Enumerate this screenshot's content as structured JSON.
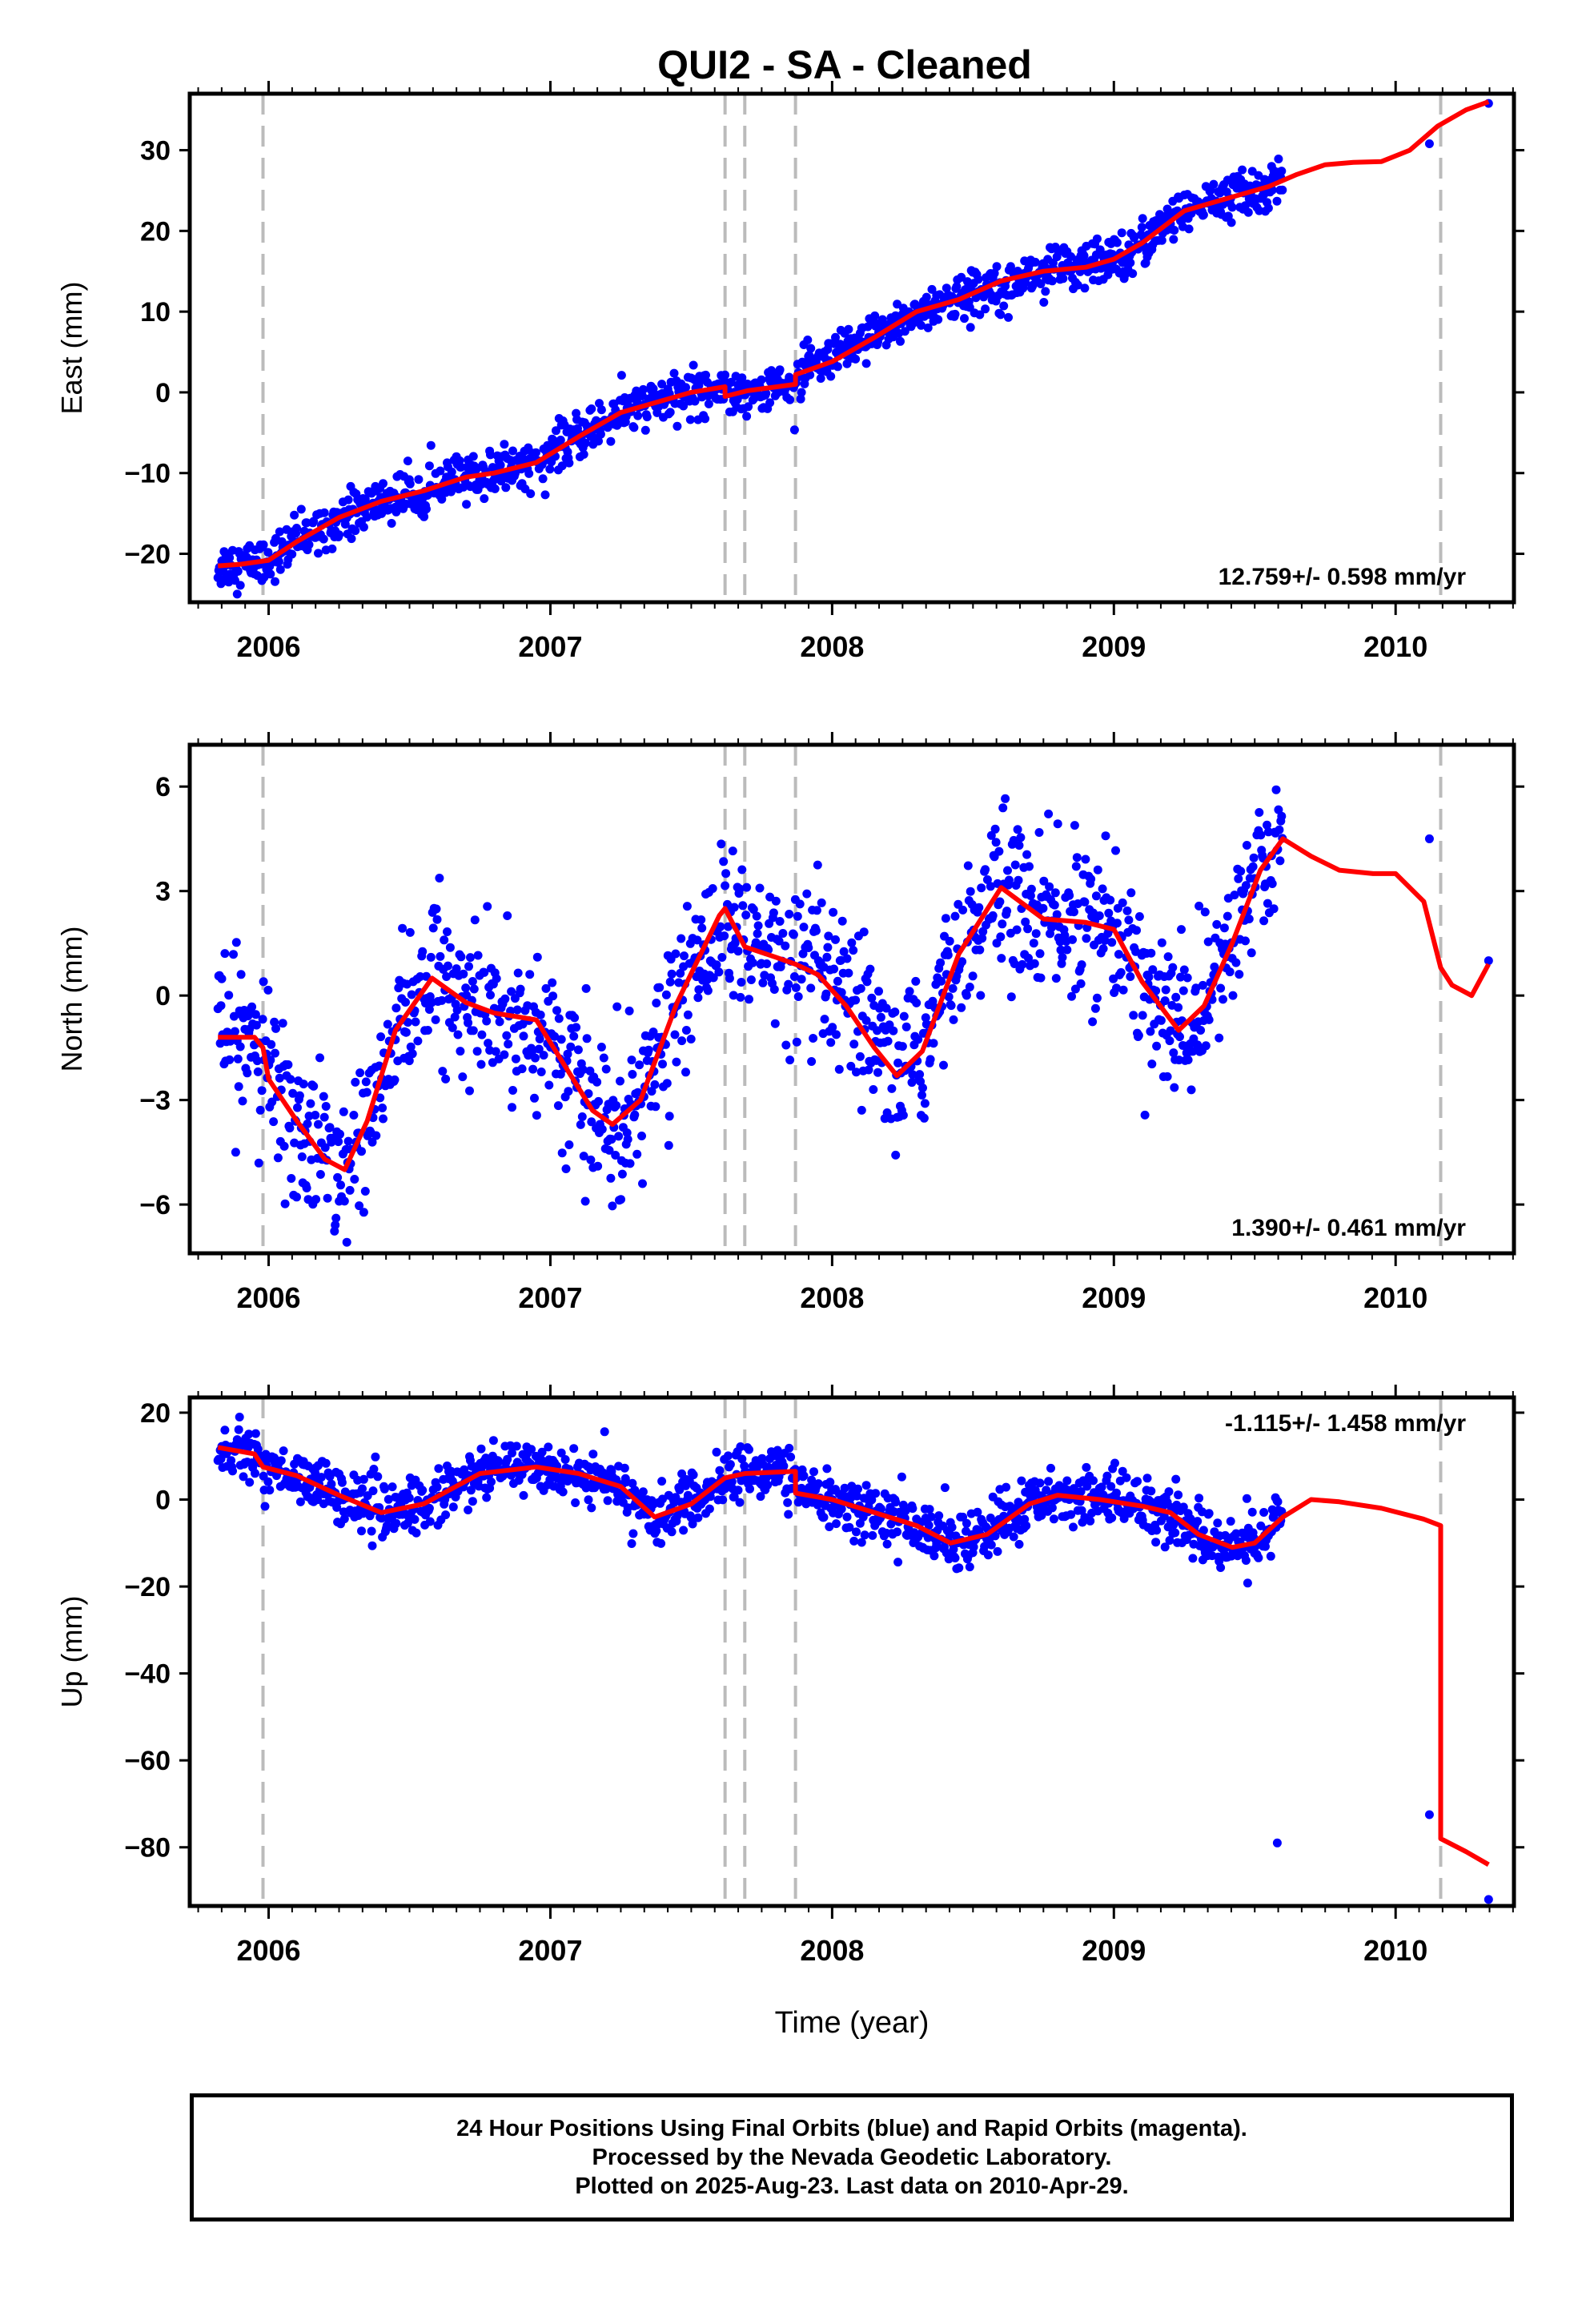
{
  "title": "QUI2  - SA - Cleaned",
  "footer": {
    "line1": "24 Hour Positions Using Final Orbits (blue) and Rapid Orbits (magenta).",
    "line2": "Processed by the Nevada Geodetic Laboratory.",
    "line3": "Plotted on 2025-Aug-23. Last data on 2010-Apr-29."
  },
  "colors": {
    "data": "#0000ff",
    "model": "#ff0000",
    "event_line": "#bbbbbb",
    "axis": "#000000"
  },
  "chart_data": [
    {
      "type": "scatter",
      "ylabel": "East (mm)",
      "xlabel": "",
      "rate": "12.759+/- 0.598 mm/yr",
      "xlim": [
        2005.72,
        2010.42
      ],
      "ylim": [
        -26,
        37
      ],
      "yticks": [
        -20,
        -10,
        0,
        10,
        20,
        30
      ],
      "xticks": [
        2006,
        2007,
        2008,
        2009,
        2010
      ],
      "event_lines": [
        2005.98,
        2007.62,
        2007.69,
        2007.87,
        2010.16
      ],
      "model": {
        "name": "model",
        "x": [
          2005.82,
          2005.9,
          2006.0,
          2006.1,
          2006.25,
          2006.4,
          2006.55,
          2006.7,
          2006.8,
          2006.95,
          2007.1,
          2007.25,
          2007.4,
          2007.5,
          2007.62,
          2007.62,
          2007.7,
          2007.87,
          2007.87,
          2008.0,
          2008.15,
          2008.3,
          2008.45,
          2008.6,
          2008.75,
          2008.9,
          2009.0,
          2009.1,
          2009.25,
          2009.4,
          2009.55,
          2009.65,
          2009.75,
          2009.85,
          2009.95,
          2010.05,
          2010.15,
          2010.25,
          2010.33
        ],
        "y": [
          -21.5,
          -21.3,
          -20.8,
          -18.5,
          -15.5,
          -13.5,
          -12.2,
          -10.5,
          -10,
          -8.7,
          -5.5,
          -2.5,
          -1,
          0,
          0.7,
          -0.5,
          0.2,
          1,
          2.2,
          3.8,
          6.8,
          10,
          11.5,
          13.8,
          15,
          15.5,
          16.5,
          18.5,
          22.5,
          24,
          25.5,
          27,
          28.2,
          28.5,
          28.6,
          30,
          33,
          35,
          36
        ]
      },
      "extra_points": [
        {
          "x": 2010.12,
          "y": 30.8
        },
        {
          "x": 2010.33,
          "y": 35.8
        }
      ],
      "noise": 1.4
    },
    {
      "type": "scatter",
      "ylabel": "North (mm)",
      "xlabel": "",
      "rate": "1.390+/- 0.461 mm/yr",
      "xlim": [
        2005.72,
        2010.42
      ],
      "ylim": [
        -7.4,
        7.2
      ],
      "yticks": [
        -6,
        -3,
        0,
        3,
        6
      ],
      "xticks": [
        2006,
        2007,
        2008,
        2009,
        2010
      ],
      "event_lines": [
        2005.98,
        2007.62,
        2007.69,
        2007.87,
        2010.16
      ],
      "model": {
        "name": "model",
        "x": [
          2005.82,
          2005.95,
          2005.98,
          2006.0,
          2006.1,
          2006.2,
          2006.27,
          2006.35,
          2006.45,
          2006.58,
          2006.7,
          2006.8,
          2006.95,
          2007.05,
          2007.15,
          2007.22,
          2007.32,
          2007.45,
          2007.6,
          2007.62,
          2007.69,
          2007.8,
          2007.87,
          2007.95,
          2008.05,
          2008.15,
          2008.23,
          2008.32,
          2008.45,
          2008.6,
          2008.75,
          2008.9,
          2009.0,
          2009.1,
          2009.23,
          2009.32,
          2009.42,
          2009.52,
          2009.6,
          2009.7,
          2009.8,
          2009.92,
          2010.0,
          2010.1,
          2010.16,
          2010.2,
          2010.27,
          2010.33
        ],
        "y": [
          -1.2,
          -1.2,
          -1.5,
          -2.4,
          -3.6,
          -4.7,
          -5.0,
          -3.6,
          -1.0,
          0.5,
          -0.2,
          -0.5,
          -0.7,
          -2.0,
          -3.3,
          -3.7,
          -3.0,
          -0.2,
          2.3,
          2.5,
          1.4,
          1.1,
          0.9,
          0.6,
          -0.3,
          -1.5,
          -2.3,
          -1.6,
          1.2,
          3.1,
          2.2,
          2.1,
          1.9,
          0.4,
          -1.0,
          -0.3,
          1.5,
          3.6,
          4.5,
          4.0,
          3.6,
          3.5,
          3.5,
          2.7,
          0.8,
          0.3,
          0.0,
          0.9
        ]
      },
      "extra_points": [
        {
          "x": 2010.12,
          "y": 4.5
        },
        {
          "x": 2010.33,
          "y": 1.0
        }
      ],
      "noise": 1.1
    },
    {
      "type": "scatter",
      "ylabel": "Up (mm)",
      "xlabel": "Time (year)",
      "rate": "-1.115+/- 1.458 mm/yr",
      "xlim": [
        2005.72,
        2010.42
      ],
      "ylim": [
        -93.5,
        23.5
      ],
      "yticks": [
        -80,
        -60,
        -40,
        -20,
        0,
        20
      ],
      "xticks": [
        2006,
        2007,
        2008,
        2009,
        2010
      ],
      "event_lines": [
        2005.98,
        2007.62,
        2007.69,
        2007.87,
        2010.16
      ],
      "model": {
        "name": "model",
        "x": [
          2005.82,
          2005.95,
          2005.98,
          2006.1,
          2006.25,
          2006.4,
          2006.55,
          2006.75,
          2006.95,
          2007.1,
          2007.25,
          2007.37,
          2007.5,
          2007.62,
          2007.69,
          2007.87,
          2007.87,
          2008.0,
          2008.15,
          2008.3,
          2008.42,
          2008.55,
          2008.7,
          2008.8,
          2008.95,
          2009.1,
          2009.2,
          2009.3,
          2009.42,
          2009.5,
          2009.6,
          2009.7,
          2009.8,
          2009.95,
          2010.1,
          2010.16,
          2010.16,
          2010.25,
          2010.33
        ],
        "y": [
          12,
          10.5,
          7.5,
          5.5,
          1,
          -3,
          -1,
          6,
          7.5,
          6,
          3,
          -4,
          -1,
          5,
          6,
          6.5,
          1.5,
          0,
          -3,
          -6,
          -10,
          -8,
          -1,
          1,
          0,
          -1.5,
          -3,
          -8,
          -11,
          -10,
          -4,
          0,
          -0.5,
          -2,
          -4.5,
          -6,
          -78,
          -81,
          -84
        ]
      },
      "extra_points": [
        {
          "x": 2009.58,
          "y": -79
        },
        {
          "x": 2010.12,
          "y": -72.5
        },
        {
          "x": 2010.33,
          "y": -92
        }
      ],
      "noise": 3.2
    }
  ]
}
